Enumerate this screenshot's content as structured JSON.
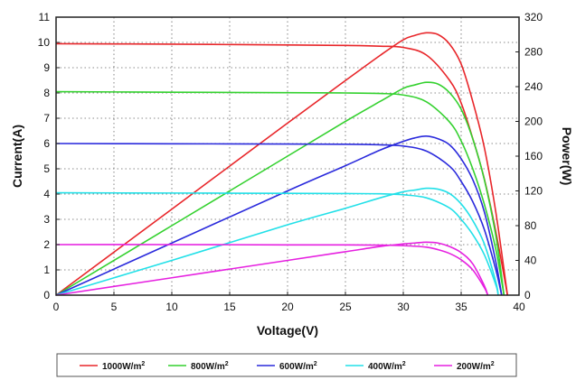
{
  "chart_data": {
    "type": "line",
    "xlabel": "Voltage(V)",
    "ylabel_left": "Current(A)",
    "ylabel_right": "Power(W)",
    "xlim": [
      0,
      40
    ],
    "ylim_left": [
      0,
      11
    ],
    "ylim_right": [
      0,
      320
    ],
    "x_ticks": [
      0,
      5,
      10,
      15,
      20,
      25,
      30,
      35,
      40
    ],
    "y_left_ticks": [
      0,
      1,
      2,
      3,
      4,
      5,
      6,
      7,
      8,
      9,
      10,
      11
    ],
    "y_right_ticks": [
      0,
      40,
      80,
      120,
      160,
      200,
      240,
      280,
      320
    ],
    "grid": true,
    "legend_position": "bottom",
    "legend_unit_suffix": "2",
    "series": [
      {
        "name": "1000W/m",
        "color": "#e8262a",
        "iv": {
          "x": [
            0,
            10,
            20,
            25,
            28,
            30,
            32,
            34,
            35,
            36,
            37,
            38,
            39
          ],
          "y": [
            9.95,
            9.93,
            9.9,
            9.88,
            9.85,
            9.8,
            9.5,
            8.5,
            7.6,
            6.2,
            4.6,
            2.5,
            0
          ]
        },
        "pv": {
          "x": [
            0,
            10,
            20,
            25,
            28,
            30,
            31,
            32,
            33,
            34,
            35,
            36,
            37,
            38,
            39
          ],
          "y": [
            0,
            99,
            198,
            247,
            276,
            294,
            299,
            302,
            300,
            289,
            266,
            223,
            170,
            95,
            0
          ]
        }
      },
      {
        "name": "800W/m",
        "color": "#34d12f",
        "iv": {
          "x": [
            0,
            10,
            20,
            25,
            28,
            30,
            32,
            34,
            35,
            36,
            37,
            38,
            38.7
          ],
          "y": [
            8.05,
            8.03,
            8.01,
            8.0,
            7.98,
            7.92,
            7.65,
            6.85,
            6.1,
            5.0,
            3.6,
            1.8,
            0
          ]
        },
        "pv": {
          "x": [
            0,
            10,
            20,
            25,
            28,
            30,
            31,
            32,
            33,
            34,
            35,
            36,
            37,
            38,
            38.7
          ],
          "y": [
            0,
            80,
            160,
            200,
            223,
            238,
            242,
            245,
            243,
            233,
            214,
            180,
            133,
            68,
            0
          ]
        }
      },
      {
        "name": "600W/m",
        "color": "#2a2adc",
        "iv": {
          "x": [
            0,
            10,
            20,
            25,
            28,
            30,
            32,
            34,
            35,
            36,
            37,
            38,
            38.5
          ],
          "y": [
            6.0,
            5.99,
            5.98,
            5.97,
            5.95,
            5.9,
            5.7,
            5.1,
            4.5,
            3.7,
            2.6,
            1.0,
            0
          ]
        },
        "pv": {
          "x": [
            0,
            10,
            20,
            25,
            28,
            30,
            31,
            32,
            33,
            34,
            35,
            36,
            37,
            38,
            38.5
          ],
          "y": [
            0,
            60,
            120,
            149,
            167,
            177,
            181,
            183,
            180,
            173,
            157,
            133,
            96,
            38,
            0
          ]
        }
      },
      {
        "name": "400W/m",
        "color": "#22e0e8",
        "iv": {
          "x": [
            0,
            10,
            20,
            25,
            28,
            30,
            32,
            34,
            35,
            36,
            37,
            38,
            38.2
          ],
          "y": [
            4.05,
            4.04,
            4.03,
            4.02,
            4.01,
            3.97,
            3.85,
            3.45,
            3.0,
            2.4,
            1.6,
            0.4,
            0
          ]
        },
        "pv": {
          "x": [
            0,
            10,
            20,
            25,
            28,
            30,
            31,
            32,
            33,
            34,
            35,
            36,
            37,
            38,
            38.2
          ],
          "y": [
            0,
            40,
            81,
            100,
            112,
            119,
            121,
            123,
            122,
            117,
            105,
            86,
            59,
            15,
            0
          ]
        }
      },
      {
        "name": "200W/m",
        "color": "#e620e0",
        "iv": {
          "x": [
            0,
            10,
            20,
            25,
            28,
            30,
            32,
            33,
            34,
            35,
            36,
            37,
            37.3
          ],
          "y": [
            2.0,
            2.0,
            1.99,
            1.99,
            1.98,
            1.96,
            1.9,
            1.8,
            1.65,
            1.4,
            1.0,
            0.3,
            0
          ]
        },
        "pv": {
          "x": [
            0,
            10,
            20,
            25,
            28,
            30,
            31,
            32,
            33,
            34,
            35,
            36,
            37,
            37.3
          ],
          "y": [
            0,
            20,
            40,
            50,
            56,
            59,
            60,
            61,
            60,
            56,
            49,
            36,
            11,
            0
          ]
        }
      }
    ]
  }
}
